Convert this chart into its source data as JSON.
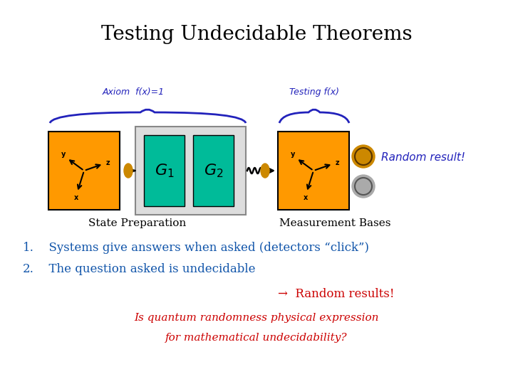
{
  "title": "Testing Undecidable Theorems",
  "title_fontsize": 20,
  "title_color": "#000000",
  "bg_color": "#ffffff",
  "orange_color": "#FF9900",
  "teal_color": "#00BB99",
  "gray_box_color": "#DDDDDD",
  "label_state": "State Preparation",
  "label_measure": "Measurement Bases",
  "handwritten_color": "#2222BB",
  "item1_num": "1.",
  "item1_text": "  Systems give answers when asked (detectors “click”)",
  "item2_num": "2.",
  "item2_text": "  The question asked is undecidable",
  "item_color": "#1155AA",
  "arrow_result": "→  Random results!",
  "arrow_result_color": "#CC0000",
  "italic_line1": "Is quantum randomness physical expression",
  "italic_line2": "for mathematical undecidability?",
  "italic_color": "#CC0000",
  "random_result_text": "Random result!",
  "random_result_color": "#2222BB",
  "axiom_text": "Axiom  f(x)=1",
  "testing_text": "Testing f(x)"
}
